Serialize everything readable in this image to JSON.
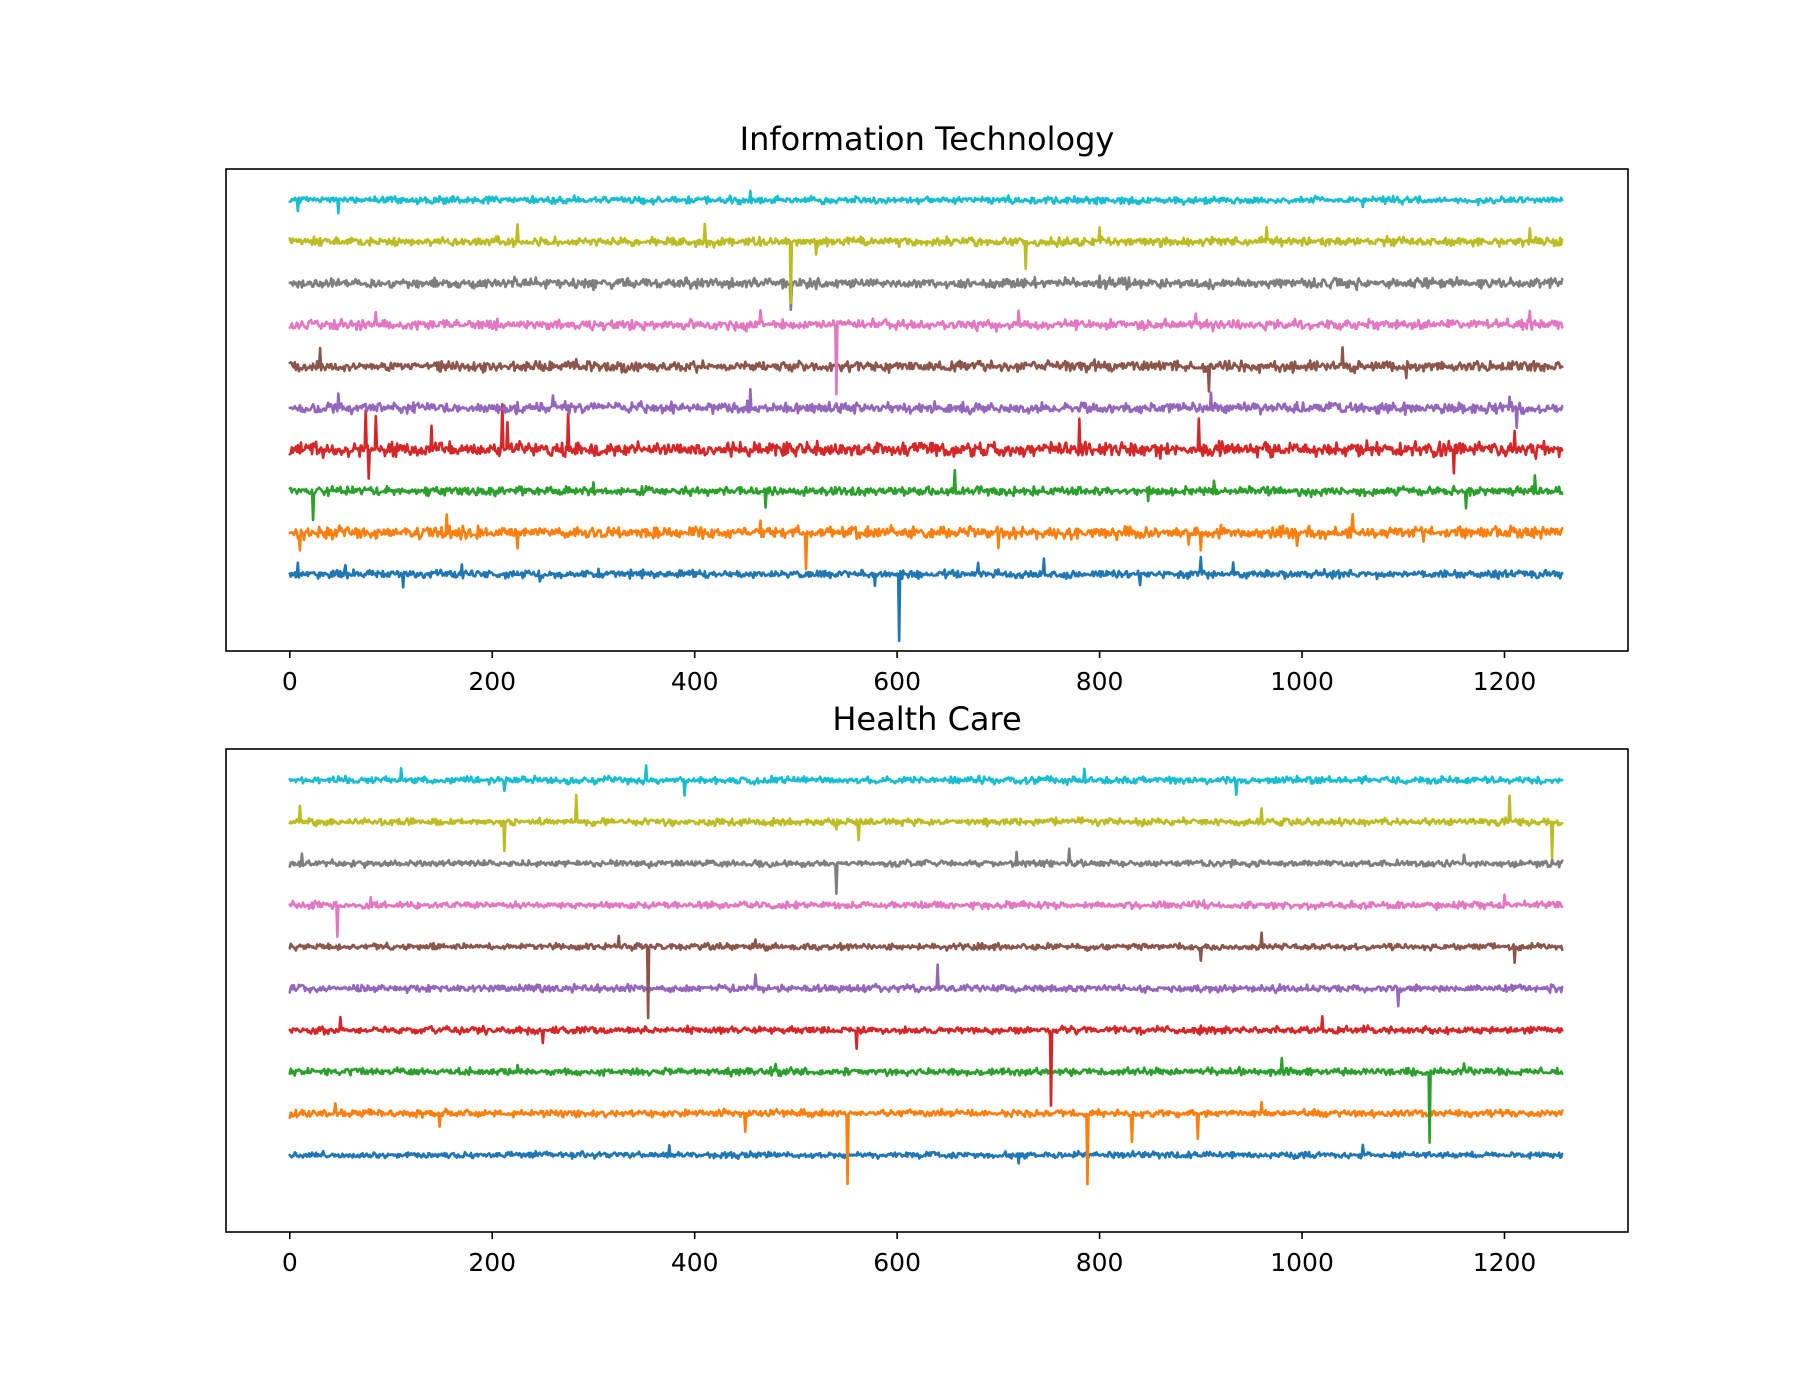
{
  "chart_data": [
    {
      "type": "line",
      "title": "Information Technology",
      "xlabel": "",
      "ylabel": "",
      "xlim": [
        -63,
        1322
      ],
      "xticks": [
        0,
        200,
        400,
        600,
        800,
        1000,
        1200
      ],
      "yticks_visible": false,
      "grid": false,
      "legend": "none",
      "n_points": 1258,
      "series": [
        {
          "color": "#1f77b4",
          "offset": 0,
          "noise": 0.09,
          "spikes": [
            [
              8,
              0.18
            ],
            [
              55,
              0.2
            ],
            [
              112,
              -0.3
            ],
            [
              170,
              0.2
            ],
            [
              247,
              -0.2
            ],
            [
              305,
              0.22
            ],
            [
              578,
              -0.3
            ],
            [
              602,
              -1.6
            ],
            [
              680,
              0.25
            ],
            [
              745,
              0.3
            ],
            [
              840,
              -0.25
            ],
            [
              900,
              0.45
            ],
            [
              932,
              0.25
            ]
          ]
        },
        {
          "color": "#ff7f0e",
          "offset": 1,
          "noise": 0.13,
          "spikes": [
            [
              10,
              -0.45
            ],
            [
              155,
              0.42
            ],
            [
              225,
              -0.35
            ],
            [
              465,
              0.3
            ],
            [
              510,
              -0.9
            ],
            [
              700,
              -0.35
            ],
            [
              888,
              -0.25
            ],
            [
              900,
              -0.45
            ],
            [
              995,
              -0.3
            ],
            [
              1050,
              0.4
            ],
            [
              1120,
              -0.3
            ]
          ]
        },
        {
          "color": "#2ca02c",
          "offset": 2,
          "noise": 0.1,
          "spikes": [
            [
              23,
              -0.8
            ],
            [
              300,
              0.2
            ],
            [
              470,
              -0.4
            ],
            [
              657,
              0.52
            ],
            [
              848,
              -0.3
            ],
            [
              913,
              0.3
            ],
            [
              1162,
              -0.45
            ],
            [
              1230,
              0.3
            ]
          ]
        },
        {
          "color": "#d62728",
          "offset": 3,
          "noise": 0.16,
          "spikes": [
            [
              75,
              1.1
            ],
            [
              78,
              -0.75
            ],
            [
              85,
              0.9
            ],
            [
              140,
              0.5
            ],
            [
              210,
              0.95
            ],
            [
              215,
              0.7
            ],
            [
              275,
              0.85
            ],
            [
              780,
              0.6
            ],
            [
              898,
              0.7
            ],
            [
              1150,
              -0.6
            ],
            [
              1210,
              0.4
            ]
          ]
        },
        {
          "color": "#9467bd",
          "offset": 4,
          "noise": 0.12,
          "spikes": [
            [
              48,
              0.4
            ],
            [
              260,
              0.3
            ],
            [
              455,
              0.42
            ],
            [
              910,
              0.3
            ],
            [
              1205,
              0.25
            ],
            [
              1212,
              -0.5
            ]
          ]
        },
        {
          "color": "#8c564b",
          "offset": 5,
          "noise": 0.12,
          "spikes": [
            [
              30,
              0.42
            ],
            [
              660,
              0.25
            ],
            [
              908,
              -0.55
            ],
            [
              1040,
              0.4
            ],
            [
              1103,
              -0.35
            ]
          ]
        },
        {
          "color": "#e377c2",
          "offset": 6,
          "noise": 0.11,
          "spikes": [
            [
              85,
              0.35
            ],
            [
              465,
              0.35
            ],
            [
              540,
              -1.6
            ],
            [
              720,
              0.3
            ],
            [
              895,
              0.3
            ],
            [
              1225,
              0.35
            ]
          ]
        },
        {
          "color": "#7f7f7f",
          "offset": 7,
          "noise": 0.11,
          "spikes": [
            [
              495,
              -0.65
            ],
            [
              800,
              0.15
            ],
            [
              1000,
              0.15
            ]
          ]
        },
        {
          "color": "#bcbd22",
          "offset": 8,
          "noise": 0.1,
          "spikes": [
            [
              225,
              0.55
            ],
            [
              410,
              0.42
            ],
            [
              495,
              -1.55
            ],
            [
              520,
              -0.3
            ],
            [
              727,
              -0.65
            ],
            [
              800,
              0.35
            ],
            [
              965,
              0.3
            ],
            [
              1225,
              0.25
            ]
          ]
        },
        {
          "color": "#17becf",
          "offset": 9,
          "noise": 0.08,
          "spikes": [
            [
              8,
              -0.25
            ],
            [
              48,
              -0.35
            ],
            [
              455,
              0.2
            ],
            [
              710,
              0.15
            ],
            [
              1060,
              -0.2
            ]
          ]
        }
      ]
    },
    {
      "type": "line",
      "title": "Health Care",
      "xlabel": "",
      "ylabel": "",
      "xlim": [
        -63,
        1322
      ],
      "xticks": [
        0,
        200,
        400,
        600,
        800,
        1000,
        1200
      ],
      "yticks_visible": false,
      "grid": false,
      "legend": "none",
      "n_points": 1258,
      "series": [
        {
          "color": "#1f77b4",
          "offset": 0,
          "noise": 0.07,
          "spikes": [
            [
              375,
              0.2
            ],
            [
              720,
              -0.25
            ],
            [
              1060,
              0.22
            ]
          ]
        },
        {
          "color": "#ff7f0e",
          "offset": 1,
          "noise": 0.08,
          "spikes": [
            [
              45,
              0.25
            ],
            [
              148,
              -0.35
            ],
            [
              450,
              -0.45
            ],
            [
              551,
              -1.65
            ],
            [
              788,
              -1.75
            ],
            [
              832,
              -0.7
            ],
            [
              897,
              -0.65
            ],
            [
              960,
              0.25
            ]
          ]
        },
        {
          "color": "#2ca02c",
          "offset": 2,
          "noise": 0.08,
          "spikes": [
            [
              225,
              0.2
            ],
            [
              480,
              0.2
            ],
            [
              980,
              0.3
            ],
            [
              1126,
              -1.7
            ],
            [
              1160,
              0.2
            ]
          ]
        },
        {
          "color": "#d62728",
          "offset": 3,
          "noise": 0.08,
          "spikes": [
            [
              50,
              0.3
            ],
            [
              250,
              -0.35
            ],
            [
              560,
              -0.45
            ],
            [
              752,
              -1.7
            ],
            [
              1020,
              0.3
            ]
          ]
        },
        {
          "color": "#9467bd",
          "offset": 4,
          "noise": 0.08,
          "spikes": [
            [
              460,
              0.3
            ],
            [
              640,
              0.6
            ],
            [
              1095,
              -0.35
            ]
          ]
        },
        {
          "color": "#8c564b",
          "offset": 5,
          "noise": 0.07,
          "spikes": [
            [
              325,
              0.25
            ],
            [
              354,
              -1.7
            ],
            [
              460,
              0.2
            ],
            [
              900,
              -0.3
            ],
            [
              960,
              0.3
            ],
            [
              1210,
              -0.35
            ]
          ]
        },
        {
          "color": "#e377c2",
          "offset": 6,
          "noise": 0.08,
          "spikes": [
            [
              47,
              -0.75
            ],
            [
              80,
              0.25
            ],
            [
              1200,
              0.3
            ]
          ]
        },
        {
          "color": "#7f7f7f",
          "offset": 7,
          "noise": 0.07,
          "spikes": [
            [
              12,
              0.3
            ],
            [
              540,
              -0.7
            ],
            [
              718,
              0.3
            ],
            [
              770,
              0.35
            ],
            [
              1160,
              0.2
            ]
          ]
        },
        {
          "color": "#bcbd22",
          "offset": 8,
          "noise": 0.08,
          "spikes": [
            [
              10,
              0.3
            ],
            [
              212,
              -0.7
            ],
            [
              283,
              0.65
            ],
            [
              540,
              -0.25
            ],
            [
              562,
              -0.4
            ],
            [
              960,
              0.3
            ],
            [
              1205,
              0.65
            ],
            [
              1247,
              -0.8
            ]
          ]
        },
        {
          "color": "#17becf",
          "offset": 9,
          "noise": 0.08,
          "spikes": [
            [
              110,
              0.3
            ],
            [
              212,
              -0.3
            ],
            [
              352,
              0.4
            ],
            [
              390,
              -0.3
            ],
            [
              785,
              0.3
            ],
            [
              935,
              -0.3
            ]
          ]
        }
      ]
    }
  ]
}
